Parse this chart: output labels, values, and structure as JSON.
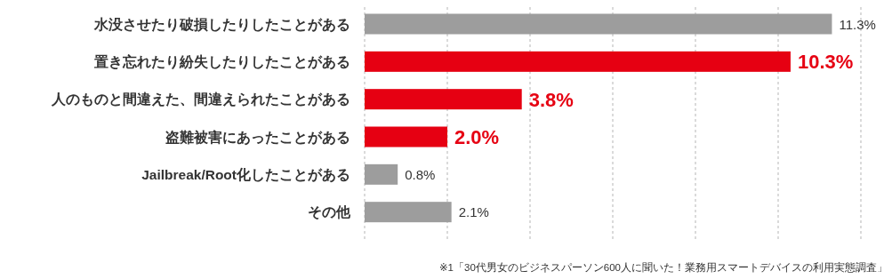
{
  "chart_data": {
    "type": "bar",
    "orientation": "horizontal",
    "categories": [
      "水没させたり破損したりしたことがある",
      "置き忘れたり紛失したりしたことがある",
      "人のものと間違えた、間違えられたことがある",
      "盗難被害にあったことがある",
      "Jailbreak/Root化したことがある",
      "その他"
    ],
    "values": [
      11.3,
      10.3,
      3.8,
      2.0,
      0.8,
      2.1
    ],
    "value_labels": [
      "11.3%",
      "10.3%",
      "3.8%",
      "2.0%",
      "0.8%",
      "2.1%"
    ],
    "colors": [
      "#9d9d9d",
      "#e60012",
      "#e60012",
      "#e60012",
      "#9d9d9d",
      "#9d9d9d"
    ],
    "xlim": [
      0,
      12
    ],
    "xticks": [
      {
        "value": 0,
        "label": null
      },
      {
        "value": 2,
        "label": null
      },
      {
        "value": 4,
        "label": null
      },
      {
        "value": 6,
        "label": null
      },
      {
        "value": 8,
        "label": null
      },
      {
        "value": 10,
        "label": null
      },
      {
        "value": 12,
        "label": null
      }
    ],
    "grid": "x",
    "tick_labels": "y",
    "annotations": [
      "※1「30代男女のビジネスパーソン600人に聞いた！業務用スマートデバイスの利用実態調査」"
    ]
  }
}
